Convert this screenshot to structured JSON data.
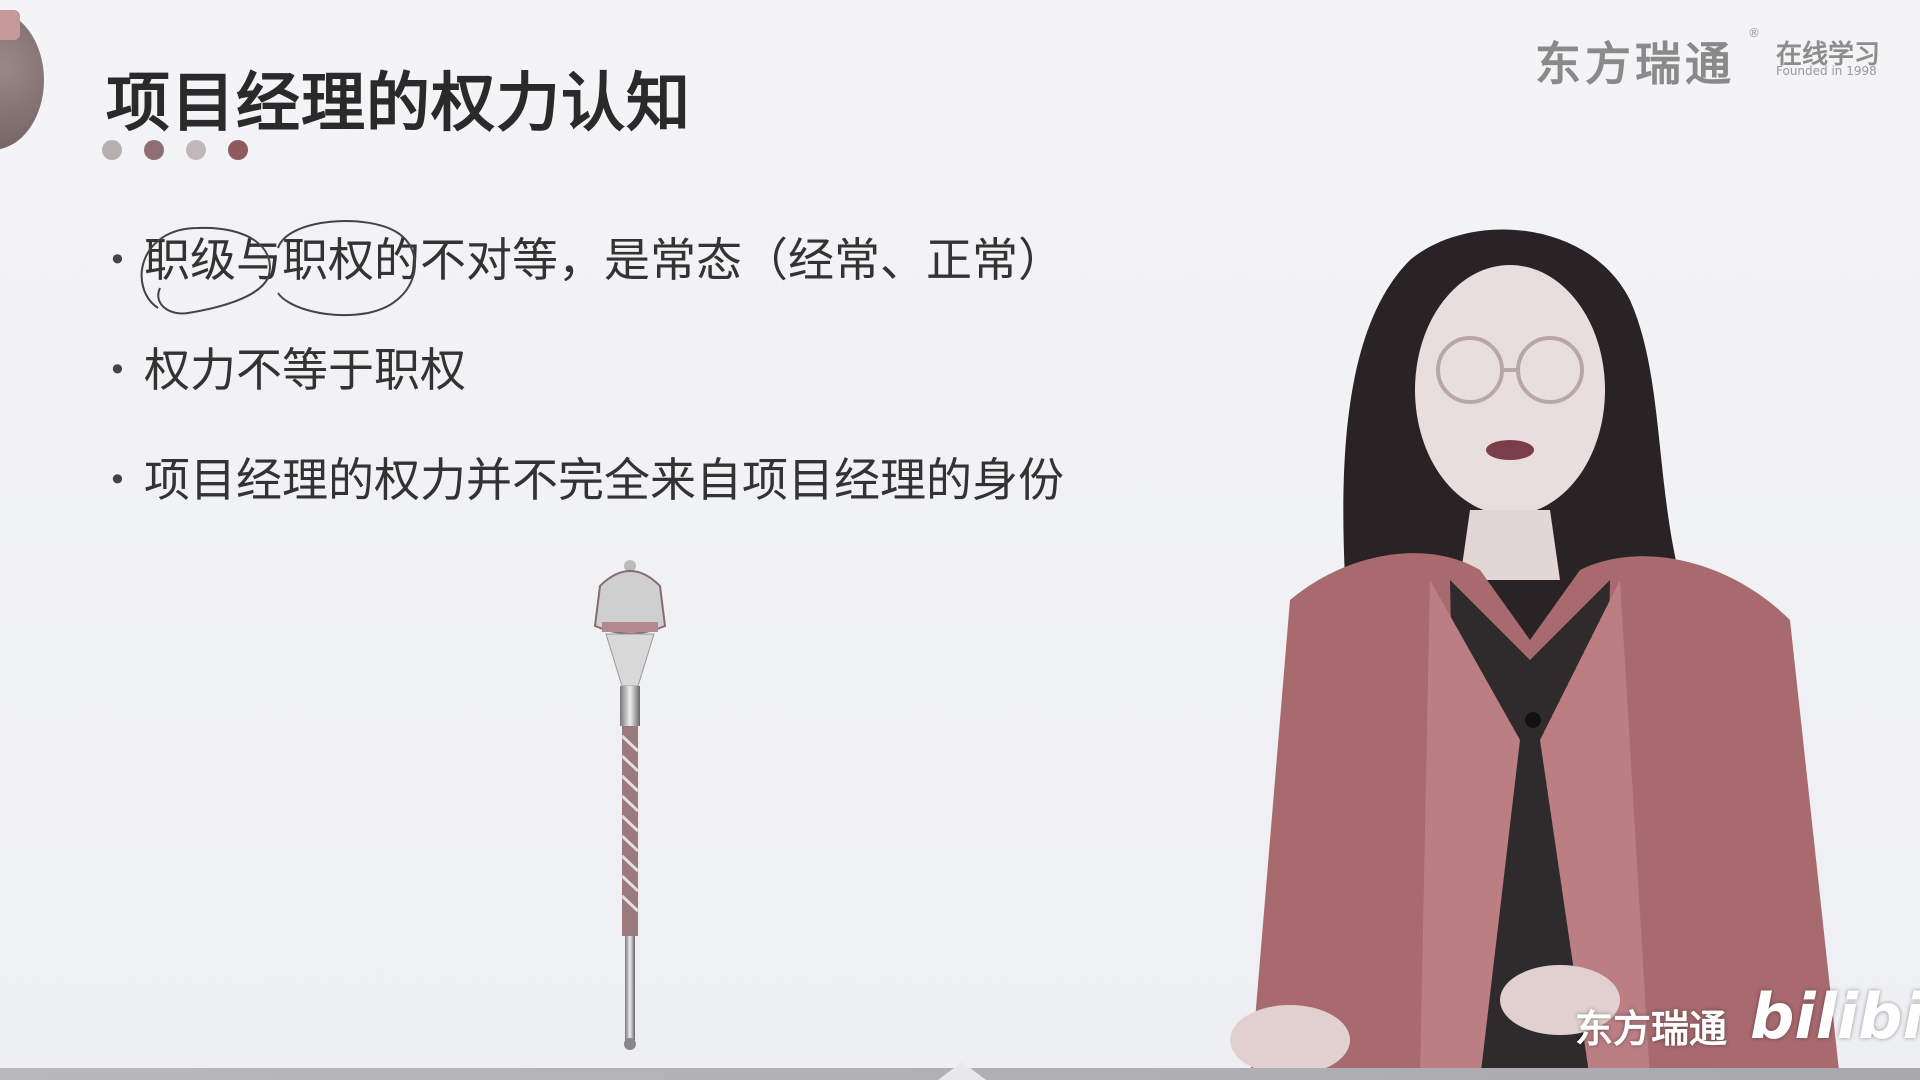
{
  "slide": {
    "title": "项目经理的权力认知",
    "bullets": [
      "职级与职权的不对等，是常态（经常、正常）",
      "权力不等于职权",
      "项目经理的权力并不完全来自项目经理的身份"
    ]
  },
  "brand": {
    "name": "东方瑞通",
    "reg_mark": "®",
    "edu": "在线学习",
    "founded": "Founded in 1998"
  },
  "watermark": {
    "text": "东方瑞通",
    "platform": "bilibili"
  },
  "colors": {
    "accent": "#8e5a60",
    "title": "#2a2a2a",
    "background": "#f2f2f5"
  },
  "icons": {
    "scepter": "scepter-illustration",
    "presenter": "presenter-photo"
  }
}
